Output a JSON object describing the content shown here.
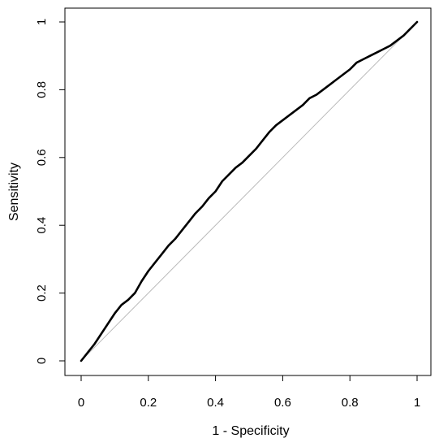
{
  "chart_data": {
    "type": "line",
    "title": "",
    "xlabel": "1 - Specificity",
    "ylabel": "Sensitivity",
    "xlim": [
      0,
      1
    ],
    "ylim": [
      0,
      1
    ],
    "xticks": [
      "0",
      "0.2",
      "0.4",
      "0.6",
      "0.8",
      "1"
    ],
    "yticks": [
      "0",
      "0.2",
      "0.4",
      "0.6",
      "0.8",
      "1"
    ],
    "grid": false,
    "legend": "none",
    "series": [
      {
        "color": "#000000",
        "x": [
          0,
          0.02,
          0.04,
          0.06,
          0.08,
          0.1,
          0.12,
          0.14,
          0.16,
          0.18,
          0.2,
          0.22,
          0.24,
          0.26,
          0.28,
          0.3,
          0.32,
          0.34,
          0.36,
          0.38,
          0.4,
          0.42,
          0.44,
          0.46,
          0.48,
          0.5,
          0.52,
          0.54,
          0.56,
          0.58,
          0.6,
          0.62,
          0.64,
          0.66,
          0.68,
          0.7,
          0.72,
          0.74,
          0.76,
          0.78,
          0.8,
          0.82,
          0.84,
          0.86,
          0.88,
          0.9,
          0.92,
          0.94,
          0.96,
          0.98,
          1.0
        ],
        "y": [
          0,
          0.025,
          0.05,
          0.08,
          0.11,
          0.14,
          0.165,
          0.18,
          0.2,
          0.235,
          0.265,
          0.29,
          0.315,
          0.34,
          0.36,
          0.385,
          0.41,
          0.435,
          0.455,
          0.48,
          0.5,
          0.53,
          0.55,
          0.57,
          0.585,
          0.605,
          0.625,
          0.65,
          0.675,
          0.695,
          0.71,
          0.725,
          0.74,
          0.755,
          0.775,
          0.785,
          0.8,
          0.815,
          0.83,
          0.845,
          0.86,
          0.88,
          0.89,
          0.9,
          0.91,
          0.92,
          0.93,
          0.945,
          0.96,
          0.98,
          1.0
        ]
      },
      {
        "color": "#bbbbbb",
        "x": [
          0,
          1
        ],
        "y": [
          0,
          1
        ]
      }
    ]
  }
}
